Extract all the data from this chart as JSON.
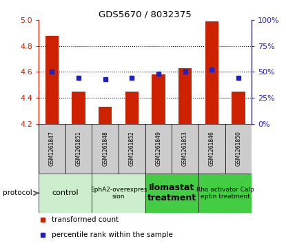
{
  "title": "GDS5670 / 8032375",
  "samples": [
    "GSM1261847",
    "GSM1261851",
    "GSM1261848",
    "GSM1261852",
    "GSM1261849",
    "GSM1261853",
    "GSM1261846",
    "GSM1261850"
  ],
  "transformed_counts": [
    4.88,
    4.45,
    4.33,
    4.45,
    4.58,
    4.63,
    4.99,
    4.45
  ],
  "percentile_ranks": [
    50,
    44,
    43,
    44,
    48,
    50,
    52,
    44
  ],
  "ylim_left": [
    4.2,
    5.0
  ],
  "ylim_right": [
    0,
    100
  ],
  "yticks_left": [
    4.2,
    4.4,
    4.6,
    4.8,
    5.0
  ],
  "yticks_right": [
    0,
    25,
    50,
    75,
    100
  ],
  "bar_color": "#cc2200",
  "dot_color": "#2222bb",
  "bar_width": 0.5,
  "bar_base": 4.2,
  "legend_red_label": "transformed count",
  "legend_blue_label": "percentile rank within the sample",
  "protocol_label": "protocol",
  "protocol_data": [
    {
      "start": 0,
      "end": 2,
      "label": "control",
      "color": "#cceecc",
      "fontsize": 8,
      "bold": false
    },
    {
      "start": 2,
      "end": 4,
      "label": "EphA2-overexpres\nsion",
      "color": "#cceecc",
      "fontsize": 6.5,
      "bold": false
    },
    {
      "start": 4,
      "end": 6,
      "label": "Ilomastat\ntreatment",
      "color": "#44cc44",
      "fontsize": 9,
      "bold": true
    },
    {
      "start": 6,
      "end": 8,
      "label": "Rho activator Calp\neptin treatment",
      "color": "#44cc44",
      "fontsize": 6.5,
      "bold": false
    }
  ],
  "sample_bg_color": "#cccccc",
  "gridline_ticks": [
    4.4,
    4.6,
    4.8
  ]
}
